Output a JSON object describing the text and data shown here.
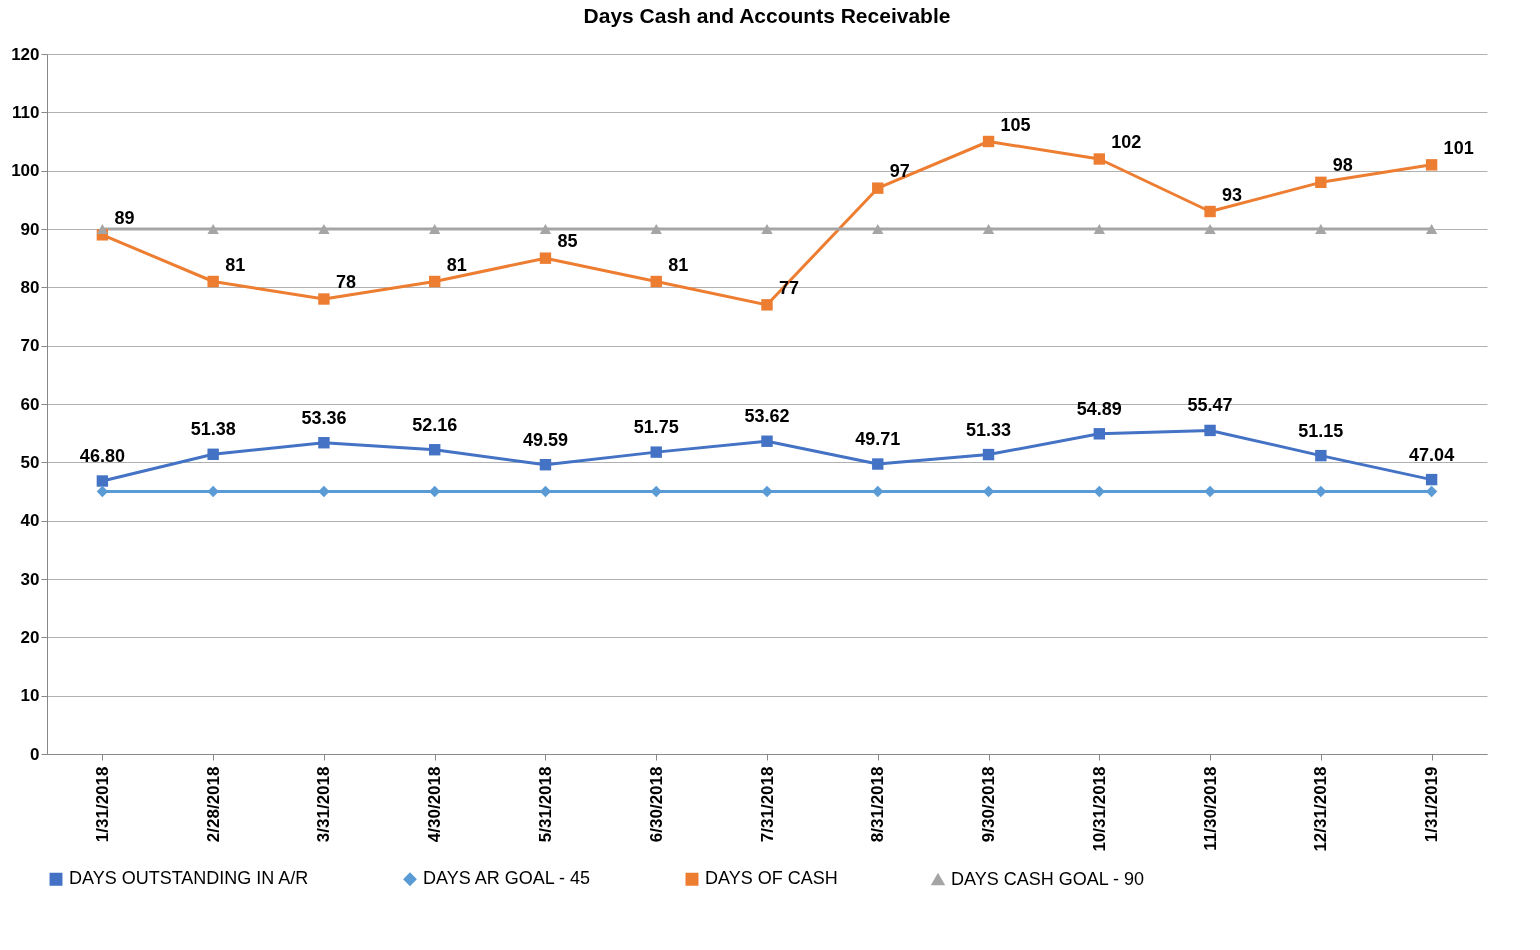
{
  "chart_data": {
    "type": "line",
    "title": "Days Cash and Accounts Receivable",
    "categories": [
      "1/31/2018",
      "2/28/2018",
      "3/31/2018",
      "4/30/2018",
      "5/31/2018",
      "6/30/2018",
      "7/31/2018",
      "8/31/2018",
      "9/30/2018",
      "10/31/2018",
      "11/30/2018",
      "12/31/2018",
      "1/31/2019"
    ],
    "series": [
      {
        "name": "DAYS OUTSTANDING IN A/R",
        "color": "#4472c4",
        "marker": "square",
        "values": [
          46.8,
          51.38,
          53.36,
          52.16,
          49.59,
          51.75,
          53.62,
          49.71,
          51.33,
          54.89,
          55.47,
          51.15,
          47.04
        ],
        "value_labels": [
          "46.80",
          "51.38",
          "53.36",
          "52.16",
          "49.59",
          "51.75",
          "53.62",
          "49.71",
          "51.33",
          "54.89",
          "55.47",
          "51.15",
          "47.04"
        ]
      },
      {
        "name": "DAYS AR GOAL - 45",
        "color": "#5b9bd5",
        "marker": "diamond",
        "values": [
          45,
          45,
          45,
          45,
          45,
          45,
          45,
          45,
          45,
          45,
          45,
          45,
          45
        ]
      },
      {
        "name": "DAYS OF CASH",
        "color": "#ed7d31",
        "marker": "square",
        "values": [
          89,
          81,
          78,
          81,
          85,
          81,
          77,
          97,
          105,
          102,
          93,
          98,
          101
        ],
        "value_labels": [
          "89",
          "81",
          "78",
          "81",
          "85",
          "81",
          "77",
          "97",
          "105",
          "102",
          "93",
          "98",
          "101"
        ]
      },
      {
        "name": "DAYS CASH GOAL - 90",
        "color": "#a5a5a5",
        "marker": "triangle",
        "values": [
          90,
          90,
          90,
          90,
          90,
          90,
          90,
          90,
          90,
          90,
          90,
          90,
          90
        ]
      }
    ],
    "ylim": [
      0,
      120
    ],
    "yticks": [
      0,
      10,
      20,
      30,
      40,
      50,
      60,
      70,
      80,
      90,
      100,
      110,
      120
    ],
    "grid": "y",
    "legend": "bottom"
  }
}
